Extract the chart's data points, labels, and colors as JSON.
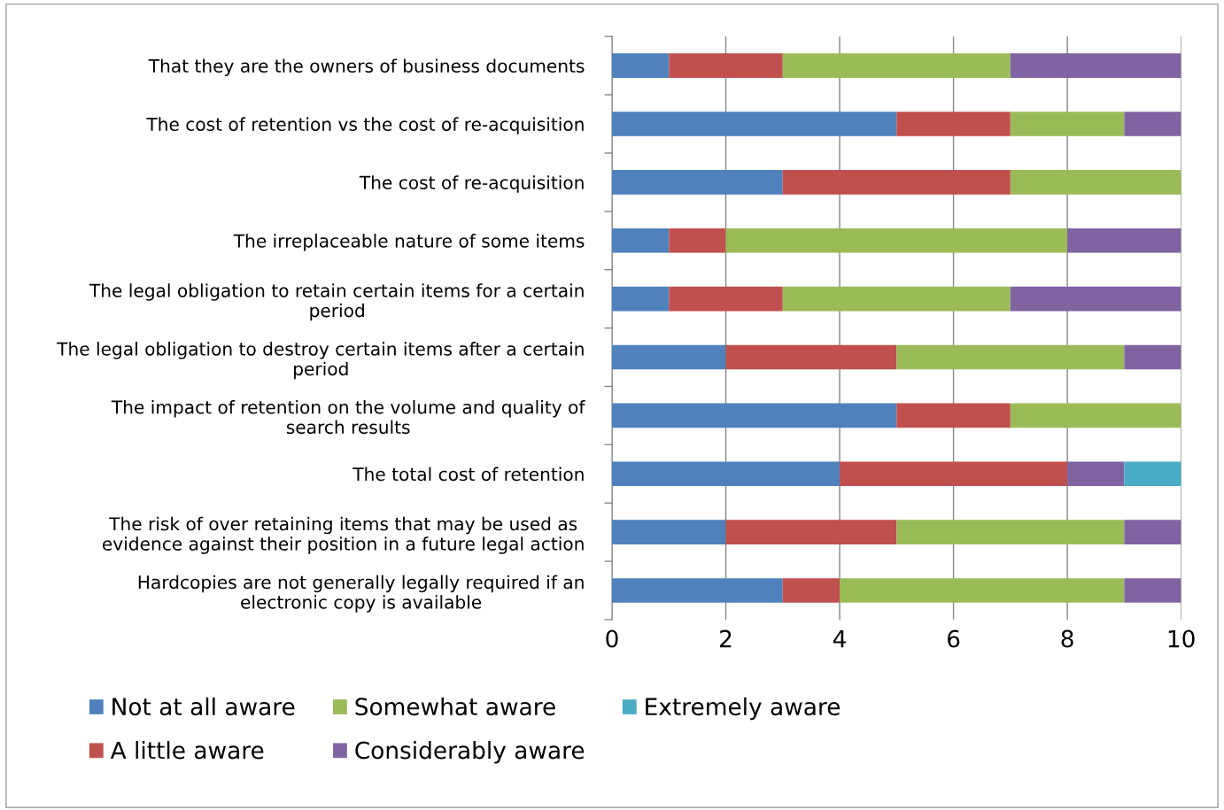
{
  "chart_data": {
    "type": "bar",
    "orientation": "horizontal",
    "stacked": true,
    "categories": [
      "That they are the owners of business documents",
      "The cost of retention vs the cost of re-acquisition",
      "The cost of re-acquisition",
      "The irreplaceable nature of some items",
      "The legal obligation to retain certain items for a certain\nperiod",
      "The legal obligation to destroy certain items after a certain\nperiod",
      "The impact of retention on the volume and quality of\nsearch results",
      "The total cost of retention",
      "The risk of over retaining items that may be used as\nevidence against their position in a future legal action",
      "Hardcopies are not generally legally required if an\nelectronic copy is available"
    ],
    "series": [
      {
        "name": "Not at all aware",
        "color": "#4f81bd",
        "values": [
          1,
          5,
          3,
          1,
          1,
          2,
          5,
          4,
          2,
          3
        ]
      },
      {
        "name": "A little aware",
        "color": "#c0504d",
        "values": [
          2,
          2,
          4,
          1,
          2,
          3,
          2,
          4,
          3,
          1
        ]
      },
      {
        "name": "Somewhat aware",
        "color": "#9bbb59",
        "values": [
          4,
          2,
          3,
          6,
          4,
          4,
          3,
          0,
          4,
          5
        ]
      },
      {
        "name": "Considerably aware",
        "color": "#8064a2",
        "values": [
          3,
          1,
          0,
          2,
          3,
          1,
          0,
          1,
          1,
          1
        ]
      },
      {
        "name": "Extremely aware",
        "color": "#4bacc6",
        "values": [
          0,
          0,
          0,
          0,
          0,
          0,
          0,
          1,
          0,
          0
        ]
      }
    ],
    "xlim": [
      0,
      10
    ],
    "xticks": [
      0,
      2,
      4,
      6,
      8,
      10
    ],
    "grid": "x",
    "legend": "bottom"
  }
}
